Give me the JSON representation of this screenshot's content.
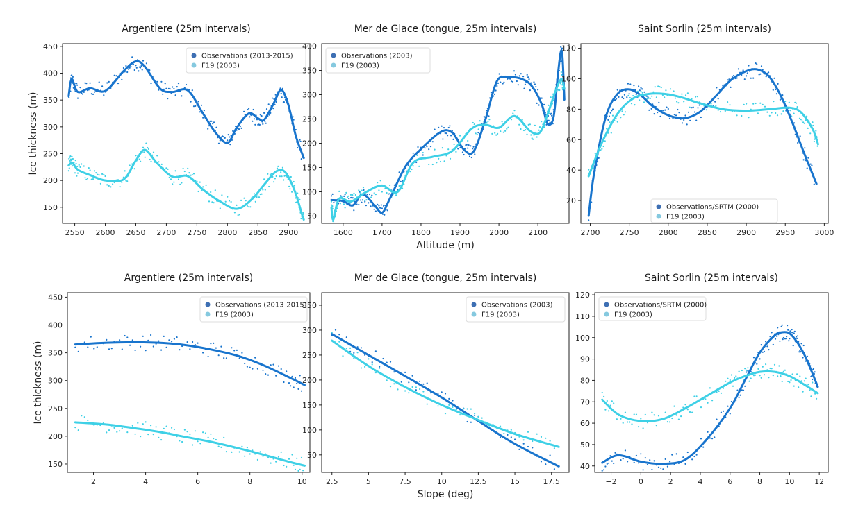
{
  "colors": {
    "obs": "#1874cd",
    "f19": "#3ed0e6",
    "obs_legend": "#3d6fb3",
    "f19_legend": "#85c9df"
  },
  "chart_data": [
    {
      "type": "line",
      "title": "Argentiere (25m intervals)",
      "xlabel": "",
      "ylabel": "Ice thickness (m)",
      "xlim": [
        2530,
        2935
      ],
      "ylim": [
        120,
        455
      ],
      "grid": false,
      "legend": "top-right",
      "xticks": [
        2550,
        2600,
        2650,
        2700,
        2750,
        2800,
        2850,
        2900
      ],
      "yticks": [
        150,
        200,
        250,
        300,
        350,
        400,
        450
      ],
      "series": [
        {
          "name": "Observations (2013-2015)",
          "style": "obs",
          "x": [
            2540,
            2545,
            2555,
            2575,
            2600,
            2630,
            2650,
            2665,
            2690,
            2710,
            2735,
            2760,
            2780,
            2800,
            2815,
            2835,
            2850,
            2860,
            2875,
            2888,
            2900,
            2912,
            2925
          ],
          "y": [
            357,
            389,
            365,
            372,
            367,
            404,
            422,
            412,
            371,
            365,
            368,
            325,
            290,
            270,
            298,
            325,
            316,
            313,
            342,
            369,
            340,
            283,
            242
          ]
        },
        {
          "name": "F19 (2003)",
          "style": "f19",
          "x": [
            2540,
            2546,
            2555,
            2575,
            2600,
            2630,
            2650,
            2665,
            2685,
            2710,
            2735,
            2760,
            2785,
            2815,
            2840,
            2860,
            2880,
            2895,
            2910,
            2922,
            2925
          ],
          "y": [
            228,
            233,
            220,
            210,
            200,
            202,
            237,
            257,
            232,
            207,
            208,
            183,
            163,
            147,
            165,
            192,
            217,
            215,
            181,
            137,
            127
          ]
        }
      ]
    },
    {
      "type": "line",
      "title": "Mer de Glace (tongue, 25m intervals)",
      "xlabel": "Altitude (m)",
      "ylabel": "",
      "xlim": [
        1545,
        2180
      ],
      "ylim": [
        35,
        405
      ],
      "grid": false,
      "legend": "top-left",
      "xticks": [
        1600,
        1700,
        1800,
        1900,
        2000,
        2100
      ],
      "yticks": [
        50,
        100,
        150,
        200,
        250,
        300,
        350,
        400
      ],
      "series": [
        {
          "name": "Observations (2003)",
          "style": "obs",
          "x": [
            1570,
            1600,
            1625,
            1650,
            1680,
            1700,
            1720,
            1760,
            1800,
            1850,
            1880,
            1910,
            1935,
            1965,
            1995,
            2025,
            2060,
            2085,
            2110,
            2125,
            2140,
            2150,
            2158,
            2163,
            2168
          ],
          "y": [
            83,
            81,
            72,
            95,
            73,
            57,
            86,
            152,
            188,
            223,
            222,
            187,
            183,
            248,
            328,
            336,
            332,
            317,
            280,
            240,
            253,
            330,
            385,
            380,
            290
          ]
        },
        {
          "name": "F19 (2003)",
          "style": "f19",
          "x": [
            1570,
            1575,
            1590,
            1620,
            1660,
            1700,
            1740,
            1780,
            1830,
            1880,
            1930,
            1965,
            2000,
            2040,
            2080,
            2105,
            2125,
            2145,
            2160,
            2168
          ],
          "y": [
            67,
            43,
            86,
            80,
            100,
            113,
            100,
            160,
            172,
            184,
            230,
            238,
            232,
            256,
            225,
            222,
            260,
            307,
            332,
            312
          ]
        }
      ]
    },
    {
      "type": "line",
      "title": "Saint Sorlin (25m intervals)",
      "xlabel": "",
      "ylabel": "",
      "xlim": [
        2688,
        3005
      ],
      "ylim": [
        5,
        123
      ],
      "grid": false,
      "legend": "bottom-center",
      "xticks": [
        2700,
        2750,
        2800,
        2850,
        2900,
        2950,
        3000
      ],
      "yticks": [
        20,
        40,
        60,
        80,
        100,
        120
      ],
      "series": [
        {
          "name": "Observations/SRTM (2000)",
          "style": "obs",
          "x": [
            2698,
            2705,
            2720,
            2735,
            2750,
            2765,
            2780,
            2800,
            2820,
            2840,
            2860,
            2880,
            2900,
            2915,
            2930,
            2945,
            2960,
            2975,
            2990
          ],
          "y": [
            10,
            38,
            75,
            90,
            93,
            89,
            82,
            76,
            74,
            78,
            88,
            99,
            105,
            106,
            101,
            88,
            70,
            50,
            31
          ]
        },
        {
          "name": "F19 (2003)",
          "style": "f19",
          "x": [
            2698,
            2715,
            2735,
            2755,
            2775,
            2795,
            2815,
            2840,
            2870,
            2900,
            2930,
            2955,
            2970,
            2985,
            2992
          ],
          "y": [
            36,
            58,
            77,
            87,
            90,
            90,
            88,
            84,
            80,
            79,
            80,
            81,
            78,
            67,
            57
          ]
        }
      ]
    },
    {
      "type": "line",
      "title": "Argentiere (25m intervals)",
      "xlabel": "",
      "ylabel": "Ice thickness (m)",
      "xlim": [
        1.0,
        10.3
      ],
      "ylim": [
        135,
        458
      ],
      "grid": false,
      "legend": "top-right",
      "xticks": [
        2,
        4,
        6,
        8,
        10
      ],
      "yticks": [
        150,
        200,
        250,
        300,
        350,
        400,
        450
      ],
      "series": [
        {
          "name": "Observations (2013-2015)",
          "style": "obs",
          "x": [
            1.3,
            2.5,
            3.5,
            4.5,
            5.5,
            6.5,
            7.5,
            8.5,
            9.5,
            10.1
          ],
          "y": [
            365,
            368,
            369,
            368,
            364,
            356,
            345,
            328,
            306,
            292
          ]
        },
        {
          "name": "F19 (2003)",
          "style": "f19",
          "x": [
            1.3,
            2.5,
            3.5,
            4.5,
            5.5,
            6.5,
            7.5,
            8.5,
            9.5,
            10.1
          ],
          "y": [
            225,
            221,
            215,
            208,
            199,
            190,
            179,
            167,
            154,
            147
          ]
        }
      ]
    },
    {
      "type": "line",
      "title": "Mer de Glace (tongue, 25m intervals)",
      "xlabel": "Slope (deg)",
      "ylabel": "",
      "xlim": [
        1.8,
        18.7
      ],
      "ylim": [
        15,
        375
      ],
      "grid": false,
      "legend": "top-right",
      "xticks": [
        2.5,
        5.0,
        7.5,
        10.0,
        12.5,
        15.0,
        17.5
      ],
      "yticks": [
        50,
        100,
        150,
        200,
        250,
        300,
        350
      ],
      "series": [
        {
          "name": "Observations (2003)",
          "style": "obs",
          "x": [
            2.5,
            5,
            7.5,
            10,
            12.5,
            15,
            18
          ],
          "y": [
            292,
            250,
            208,
            165,
            118,
            72,
            27
          ]
        },
        {
          "name": "F19 (2003)",
          "style": "f19",
          "x": [
            2.5,
            5,
            7.5,
            10,
            12.5,
            15,
            18
          ],
          "y": [
            279,
            228,
            186,
            150,
            120,
            92,
            66
          ]
        }
      ]
    },
    {
      "type": "line",
      "title": "Saint Sorlin (25m intervals)",
      "xlabel": "",
      "ylabel": "",
      "xlim": [
        -3.1,
        12.6
      ],
      "ylim": [
        37,
        121
      ],
      "grid": false,
      "legend": "top-left",
      "xticks": [
        -2,
        0,
        2,
        4,
        6,
        8,
        10,
        12
      ],
      "yticks": [
        40,
        50,
        60,
        70,
        80,
        90,
        100,
        110,
        120
      ],
      "series": [
        {
          "name": "Observations/SRTM (2000)",
          "style": "obs",
          "x": [
            -2.6,
            -1.5,
            0,
            1.5,
            3,
            4.5,
            6,
            7,
            8,
            9,
            9.5,
            10,
            10.5,
            11,
            11.5,
            11.9
          ],
          "y": [
            41.5,
            45,
            42,
            41,
            43,
            53,
            67,
            80,
            93,
            101,
            102.5,
            102,
            98,
            92,
            84,
            77
          ]
        },
        {
          "name": "F19 (2003)",
          "style": "f19",
          "x": [
            -2.6,
            -1.5,
            0,
            1.5,
            3,
            4.5,
            6,
            7,
            8,
            9,
            10,
            11,
            11.9
          ],
          "y": [
            71,
            64,
            61,
            62,
            67,
            73,
            79,
            82,
            84,
            84,
            82,
            78,
            74
          ]
        }
      ]
    }
  ]
}
